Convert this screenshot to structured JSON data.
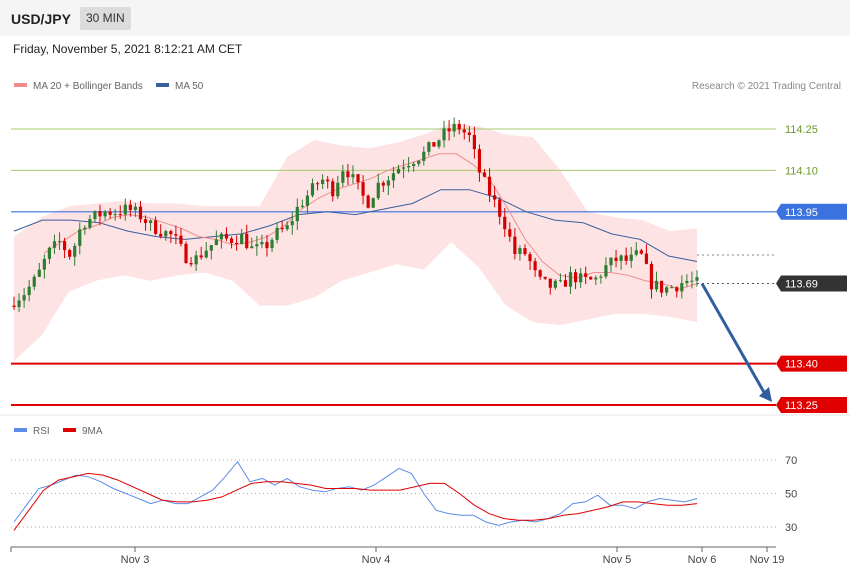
{
  "header": {
    "pair": "USD/JPY",
    "timeframe": "30 MIN"
  },
  "date_text": "Friday, November 5, 2021 8:12:21 AM CET",
  "legend": {
    "ma20": {
      "label": "MA 20 + Bollinger Bands",
      "color": "#f08c8c"
    },
    "ma50": {
      "label": "MA 50",
      "color": "#3a5f9f"
    },
    "rsi": {
      "label": "RSI",
      "color": "#5b8de8"
    },
    "rsi_ma": {
      "label": "9MA",
      "color": "#e00000"
    }
  },
  "credit": "Research © 2021 Trading Central",
  "colors": {
    "up": "#2e7d32",
    "down": "#d50000",
    "band": "#fde3e3",
    "resistance": "#a4cc6e",
    "pivot": "#3a72e0",
    "support": "#e00000",
    "arrow": "#2f5d9e",
    "price_tag": "#333333"
  },
  "chart_data": [
    {
      "type": "candlestick",
      "title": "USD/JPY",
      "ylim": [
        113.15,
        114.34
      ],
      "x_ticks": [
        "Nov 3",
        "Nov 4",
        "Nov 5",
        "Nov 6",
        "Nov 19"
      ],
      "levels": [
        {
          "value": 114.25,
          "label": "114.25",
          "kind": "resistance"
        },
        {
          "value": 114.1,
          "label": "114.10",
          "kind": "resistance"
        },
        {
          "value": 113.95,
          "label": "113.95",
          "kind": "pivot"
        },
        {
          "value": 113.4,
          "label": "113.40",
          "kind": "support"
        },
        {
          "value": 113.25,
          "label": "113.25",
          "kind": "support"
        }
      ],
      "last_price": {
        "value": 113.69,
        "label": "113.69"
      },
      "forecast_target": 113.25,
      "close_anchors": [
        113.63,
        113.66,
        113.71,
        113.8,
        113.84,
        113.79,
        113.91,
        113.93,
        113.95,
        113.95,
        113.96,
        113.94,
        113.9,
        113.88,
        113.86,
        113.79,
        113.78,
        113.82,
        113.85,
        113.85,
        113.86,
        113.81,
        113.82,
        113.87,
        113.89,
        113.97,
        114.02,
        114.07,
        114.03,
        114.12,
        114.05,
        113.98,
        114.05,
        114.08,
        114.12,
        114.14,
        114.16,
        114.2,
        114.24,
        114.26,
        114.22,
        114.08,
        114.0,
        113.92,
        113.8,
        113.8,
        113.7,
        113.68,
        113.68,
        113.72,
        113.7,
        113.7,
        113.75,
        113.78,
        113.77,
        113.8,
        113.69,
        113.67,
        113.68,
        113.7,
        113.69
      ],
      "ma20": [
        113.8,
        113.84,
        113.88,
        113.9,
        113.93,
        113.94,
        113.93,
        113.91,
        113.89,
        113.86,
        113.85,
        113.83,
        113.84,
        113.86,
        113.9,
        113.96,
        114.0,
        114.03,
        114.05,
        114.07,
        114.1,
        114.12,
        114.14,
        114.16,
        114.16,
        114.12,
        114.06,
        113.96,
        113.85,
        113.77,
        113.72,
        113.71,
        113.73,
        113.73,
        113.72,
        113.7,
        113.69,
        113.67,
        113.69
      ],
      "ma50": [
        113.88,
        113.92,
        113.92,
        113.91,
        113.88,
        113.86,
        113.85,
        113.86,
        113.87,
        113.9,
        113.94,
        113.95,
        113.94,
        113.96,
        113.98,
        114.03,
        114.03,
        114.0,
        113.95,
        113.92,
        113.91,
        113.87,
        113.85,
        113.79,
        113.77
      ],
      "bb_upper": [
        113.86,
        113.93,
        113.97,
        113.98,
        113.99,
        113.98,
        113.98,
        113.97,
        113.97,
        113.97,
        114.15,
        114.21,
        114.19,
        114.18,
        114.2,
        114.23,
        114.27,
        114.26,
        114.23,
        114.22,
        114.1,
        113.95,
        113.93,
        113.92,
        113.88,
        113.89
      ],
      "bb_lower": [
        113.41,
        113.5,
        113.66,
        113.7,
        113.72,
        113.7,
        113.72,
        113.73,
        113.7,
        113.61,
        113.61,
        113.64,
        113.7,
        113.73,
        113.76,
        113.74,
        113.84,
        113.75,
        113.61,
        113.55,
        113.54,
        113.56,
        113.58,
        113.58,
        113.57,
        113.55
      ]
    },
    {
      "type": "line",
      "title": "RSI",
      "ylim": [
        20,
        80
      ],
      "yticks": [
        30,
        50,
        70
      ],
      "series": [
        {
          "name": "RSI",
          "values": [
            33,
            43,
            53,
            55,
            58,
            61,
            60,
            57,
            53,
            50,
            47,
            44,
            46,
            44,
            44,
            48,
            52,
            60,
            69,
            57,
            59,
            55,
            59,
            54,
            52,
            51,
            53,
            54,
            52,
            55,
            60,
            65,
            62,
            50,
            40,
            38,
            37,
            37,
            33,
            31,
            33,
            34,
            33,
            35,
            38,
            44,
            45,
            49,
            43,
            43,
            41,
            45,
            47,
            46,
            45,
            47
          ]
        },
        {
          "name": "9MA",
          "values": [
            28,
            40,
            52,
            58,
            60,
            62,
            61,
            58,
            54,
            50,
            46,
            45,
            45,
            46,
            48,
            52,
            56,
            57,
            57,
            56,
            55,
            53,
            53,
            53,
            52,
            52,
            52,
            54,
            56,
            56,
            50,
            43,
            38,
            35,
            34,
            34,
            35,
            37,
            38,
            40,
            42,
            45,
            45,
            44,
            43,
            43,
            44
          ]
        }
      ]
    }
  ]
}
